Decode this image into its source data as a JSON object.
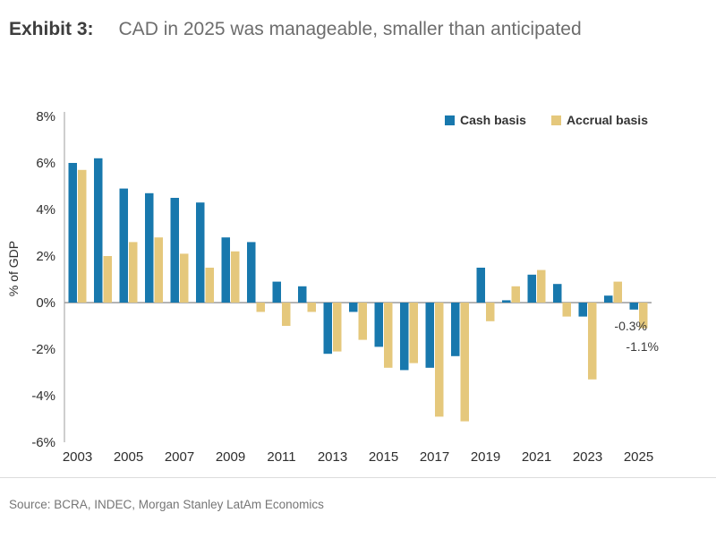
{
  "header": {
    "exhibit_label": "Exhibit 3:",
    "title": "CAD in 2025 was manageable, smaller than anticipated"
  },
  "legend": [
    {
      "label": "Cash basis",
      "color": "#1878ad"
    },
    {
      "label": "Accrual basis",
      "color": "#e5c87c"
    }
  ],
  "chart_data": {
    "type": "bar",
    "title": "CAD in 2025 was manageable, smaller than anticipated",
    "xlabel": "",
    "ylabel": "% of GDP",
    "ylim": [
      -6,
      8
    ],
    "ytick_step": 2,
    "ytick_labels": [
      "8%",
      "6%",
      "4%",
      "2%",
      "0%",
      "-2%",
      "-4%",
      "-6%"
    ],
    "grid": false,
    "legend_position": "top-right",
    "categories": [
      2003,
      2004,
      2005,
      2006,
      2007,
      2008,
      2009,
      2010,
      2011,
      2012,
      2013,
      2014,
      2015,
      2016,
      2017,
      2018,
      2019,
      2020,
      2021,
      2022,
      2023,
      2024,
      2025
    ],
    "x_tick_labels": [
      "2003",
      "2005",
      "2007",
      "2009",
      "2011",
      "2013",
      "2015",
      "2017",
      "2019",
      "2021",
      "2023",
      "2025"
    ],
    "series": [
      {
        "name": "Cash basis",
        "color": "#1878ad",
        "values": [
          6.0,
          6.2,
          4.9,
          4.7,
          4.5,
          4.3,
          2.8,
          2.6,
          0.9,
          0.7,
          -2.2,
          -0.4,
          -1.9,
          -2.9,
          -2.8,
          -2.3,
          1.5,
          0.1,
          1.2,
          0.8,
          -0.6,
          0.3,
          -0.3
        ]
      },
      {
        "name": "Accrual basis",
        "color": "#e5c87c",
        "values": [
          5.7,
          2.0,
          2.6,
          2.8,
          2.1,
          1.5,
          2.2,
          -0.4,
          -1.0,
          -0.4,
          -2.1,
          -1.6,
          -2.8,
          -2.6,
          -4.9,
          -5.1,
          -0.8,
          0.7,
          1.4,
          -0.6,
          -3.3,
          0.9,
          -1.1
        ]
      }
    ],
    "annotations": [
      {
        "text": "-0.3%",
        "year": 2025,
        "series": "Cash basis"
      },
      {
        "text": "-1.1%",
        "year": 2025,
        "series": "Accrual basis"
      }
    ]
  },
  "source": "Source: BCRA, INDEC, Morgan Stanley LatAm Economics",
  "colors": {
    "axis": "#9c9c9c",
    "tick_text": "#2e2e2e",
    "annotation_text": "#3a3a3a"
  }
}
